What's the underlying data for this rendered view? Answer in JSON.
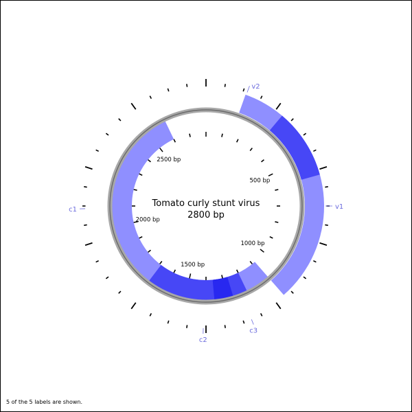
{
  "map": {
    "title": "Tomato curly stunt virus",
    "length_label": "2800 bp",
    "total_length_bp": 2800,
    "position_labels": [
      {
        "bp": 500,
        "text": "500 bp"
      },
      {
        "bp": 1000,
        "text": "1000 bp"
      },
      {
        "bp": 1500,
        "text": "1500 bp"
      },
      {
        "bp": 2000,
        "text": "2000 bp"
      },
      {
        "bp": 2500,
        "text": "2500 bp"
      }
    ],
    "footer_note": "5 of the 5 labels are shown."
  },
  "features": [
    {
      "name": "v2",
      "strand": "forward",
      "start_bp": 152,
      "end_bp": 580,
      "color": "#6f6fff"
    },
    {
      "name": "v1",
      "strand": "forward",
      "start_bp": 312,
      "end_bp": 1080,
      "color": "#6f6fff"
    },
    {
      "name": "c3",
      "strand": "reverse",
      "start_bp": 1080,
      "end_bp": 1360,
      "color": "#6f6fff"
    },
    {
      "name": "c2",
      "strand": "reverse",
      "start_bp": 1200,
      "end_bp": 1690,
      "color": "#6f6fff"
    },
    {
      "name": "c1",
      "strand": "reverse",
      "start_bp": 1270,
      "end_bp": 2600,
      "color": "#6f6fff"
    }
  ],
  "colors": {
    "feature_fill": "#7b7bff",
    "overlap_fill": "#2020ee",
    "label_color": "#6b6bdd",
    "backbone": "#808080",
    "tick_color": "#000000"
  }
}
